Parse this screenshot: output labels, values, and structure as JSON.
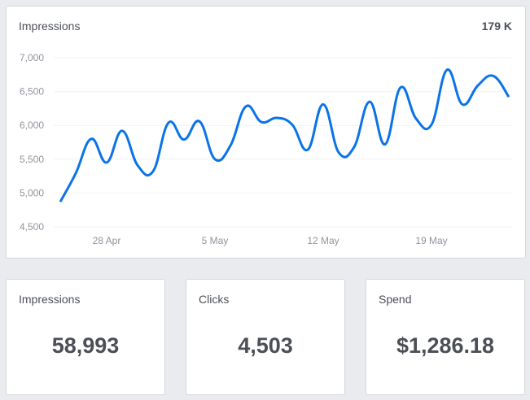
{
  "chart_card": {
    "title": "Impressions",
    "total": "179 K"
  },
  "colors": {
    "line": "#0a73e8",
    "background": "#e9ebee",
    "card": "#ffffff",
    "text": "#4b4f56",
    "axis_text": "#90949c"
  },
  "stats": [
    {
      "label": "Impressions",
      "value": "58,993"
    },
    {
      "label": "Clicks",
      "value": "4,503"
    },
    {
      "label": "Spend",
      "value": "$1,286.18"
    }
  ],
  "chart_data": {
    "type": "line",
    "title": "Impressions",
    "xlabel": "",
    "ylabel": "",
    "ylim": [
      4500,
      7000
    ],
    "yticks": [
      "4,500",
      "5,000",
      "5,500",
      "6,000",
      "6,500",
      "7,000"
    ],
    "ytick_values": [
      4500,
      5000,
      5500,
      6000,
      6500,
      7000
    ],
    "xticks": [
      "28 Apr",
      "5 May",
      "12 May",
      "19 May"
    ],
    "xtick_index": [
      3,
      10,
      17,
      24
    ],
    "grid": true,
    "legend": null,
    "x": [
      "25 Apr",
      "26 Apr",
      "27 Apr",
      "28 Apr",
      "29 Apr",
      "30 Apr",
      "1 May",
      "2 May",
      "3 May",
      "4 May",
      "5 May",
      "6 May",
      "7 May",
      "8 May",
      "9 May",
      "10 May",
      "11 May",
      "12 May",
      "13 May",
      "14 May",
      "15 May",
      "16 May",
      "17 May",
      "18 May",
      "19 May",
      "20 May",
      "21 May",
      "22 May",
      "23 May",
      "24 May"
    ],
    "series": [
      {
        "name": "Impressions",
        "values": [
          4870,
          5290,
          5800,
          5450,
          5920,
          5410,
          5320,
          6040,
          5790,
          6060,
          5500,
          5700,
          6280,
          6050,
          6110,
          6010,
          5640,
          6310,
          5600,
          5680,
          6350,
          5720,
          6560,
          6100,
          6010,
          6820,
          6310,
          6590,
          6730,
          6420
        ]
      }
    ]
  }
}
